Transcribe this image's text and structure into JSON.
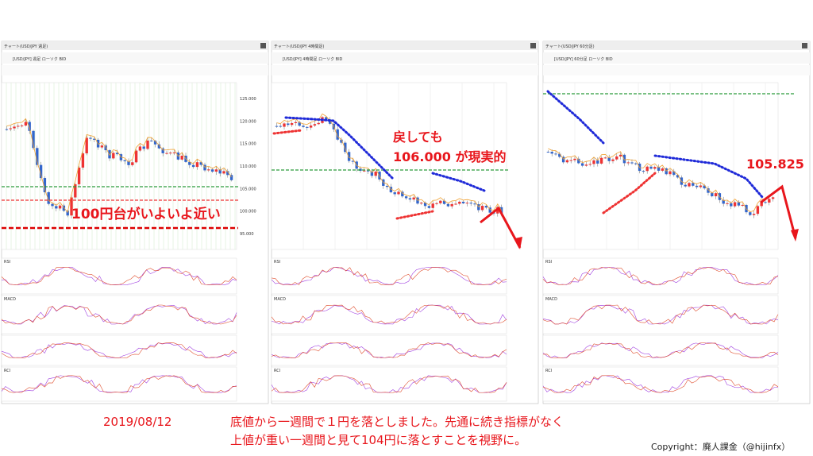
{
  "panels": [
    {
      "title": "チャート(USD/JPY 週足)",
      "symbol": "[USD/JPY] 週足 ローソク BID",
      "yticks": [
        "125.000",
        "120.000",
        "115.000",
        "110.000",
        "105.000",
        "100.000",
        "95.000"
      ],
      "indicators": [
        "RSI",
        "MACD",
        "RCI"
      ]
    },
    {
      "title": "チャート(USD/JPY 4時間足)",
      "symbol": "[USD/JPY] 4時間足 ローソク BID",
      "yticks": [],
      "indicators": [
        "RSI",
        "MACD",
        "RCI"
      ]
    },
    {
      "title": "チャート(USD/JPY 60分足)",
      "symbol": "[USD/JPY] 60分足 ローソク BID",
      "yticks": [],
      "indicators": [
        "RSI",
        "MACD",
        "RCI"
      ]
    }
  ],
  "annotations": {
    "left": "100円台がいよいよ近い",
    "middle_1": "戻しても",
    "middle_2": "106.000 が現実的",
    "right": "105.825"
  },
  "caption": {
    "date": "2019/08/12",
    "line1": "底値から一週間で１円を落としました。先通に続き指標がなく",
    "line2": "上値が重い一週間と見て104円に落とすことを視野に。"
  },
  "copyright": "Copyright：廃人課金（@hijinfx）"
}
